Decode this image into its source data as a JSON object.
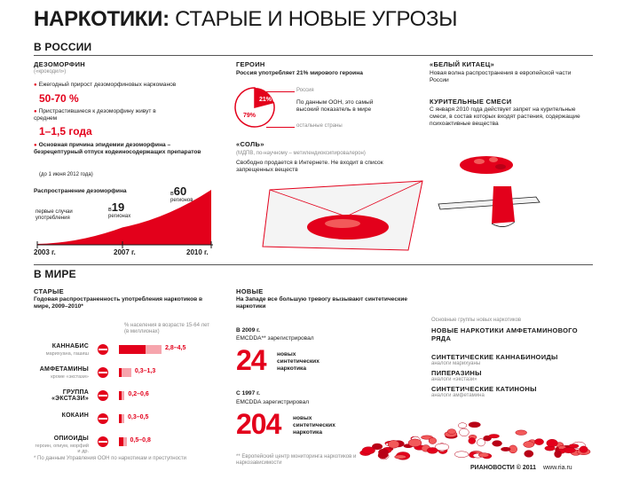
{
  "header": {
    "title_bold": "НАРКОТИКИ:",
    "title_rest": "СТАРЫЕ И НОВЫЕ УГРОЗЫ"
  },
  "russia": {
    "section": "В РОССИИ",
    "desomorphine": {
      "heading": "ДЕЗОМОРФИН",
      "alias": "(«крокодил»)",
      "bullet1": "Ежегодный прирост дезоморфиновых наркоманов",
      "bullet1_value": "50-70 %",
      "bullet2": "Пристрастившиеся к дезоморфину живут в среднем",
      "bullet2_value": "1–1,5 года",
      "bullet3": "Основная причина эпидемии дезоморфина – безрецептурный отпуск кодеиносодержащих препаратов",
      "bullet3_note": "(до 1 июня 2012 года)"
    },
    "spread": {
      "label": "Распространение дезоморфина",
      "first_cases": "первые случаи употребления",
      "reg19_prefix": "в",
      "reg19_num": "19",
      "reg19_unit": "регионах",
      "reg60_prefix": "в",
      "reg60_num": "60",
      "reg60_unit": "регионов"
    },
    "heroin": {
      "heading": "ГЕРОИН",
      "text": "Россия употребляет 21% мирового героина",
      "legend_russia": "Россия",
      "legend_others": "остальные страны",
      "note": "По данным ООН, это самый высокий показатель в мире"
    },
    "salt": {
      "heading": "«СОЛЬ»",
      "alias": "(МДПВ, по-научному – метилендиоксипировалерон)",
      "text": "Свободно продается в Интернете. Не входит в список запрещенных веществ"
    },
    "china_white": {
      "heading": "«БЕЛЫЙ КИТАЕЦ»",
      "text": "Новая волна распространения в европейской части России"
    },
    "smoking_mixes": {
      "heading": "КУРИТЕЛЬНЫЕ СМЕСИ",
      "text": "С января 2010 года действует запрет на курительные смеси, в состав которых входят растения, содержащие психоактивные вещества"
    }
  },
  "world": {
    "section": "В МИРЕ",
    "old": {
      "heading": "СТАРЫЕ",
      "text": "Годовая распространенность употребления наркотиков в мире, 2009–2010*",
      "scale_note": "% населения в возрасте 15-64 лет (в миллионах)",
      "drugs": [
        {
          "name": "КАННАБИС",
          "sub": "марихуана, гашиш",
          "range": "2,8–4,5",
          "icon": "cannabis-leaf-icon"
        },
        {
          "name": "АМФЕТАМИНЫ",
          "sub": "кроме «экстази»",
          "range": "0,3–1,3",
          "icon": "pills-icon"
        },
        {
          "name": "ГРУППА «ЭКСТАЗИ»",
          "sub": "",
          "range": "0,2–0,6",
          "icon": "ecstasy-tablet-icon"
        },
        {
          "name": "КОКАИН",
          "sub": "",
          "range": "0,3–0,5",
          "icon": "powder-icon"
        },
        {
          "name": "ОПИОИДЫ",
          "sub": "героин, опиум, морфий и др.",
          "range": "0,5–0,8",
          "icon": "syringe-icon"
        }
      ],
      "footnote": "* По данным Управления ООН по наркотикам и преступности"
    },
    "new": {
      "heading": "НОВЫЕ",
      "text": "На Западе все большую тревогу вызывают синтетические наркотики",
      "y2009": "В 2009 г.",
      "emcdda1": "EMCDDA** зарегистрировал",
      "num24": "24",
      "num24_label": "новых синтетических наркотика",
      "since1997": "С 1997 г.",
      "emcdda2": "EMCDDA зарегистрировал",
      "num204": "204",
      "num204_label": "новых синтетических наркотика",
      "footnote": "** Европейский центр мониторинга наркотиков и наркозависимости"
    },
    "groups": {
      "heading": "Основные группы новых наркотиков",
      "items": [
        {
          "name": "НОВЫЕ НАРКОТИКИ АМФЕТАМИНОВОГО РЯДА",
          "sub": ""
        },
        {
          "name": "СИНТЕТИЧЕСКИЕ КАННАБИНОИДЫ",
          "sub": "аналоги марихуаны"
        },
        {
          "name": "ПИПЕРАЗИНЫ",
          "sub": "аналоги «экстази»"
        },
        {
          "name": "СИНТЕТИЧЕСКИЕ КАТИНОНЫ",
          "sub": "аналоги амфетамина"
        }
      ]
    }
  },
  "footer": {
    "source": "РИАНОВОСТИ © 2011",
    "site": "www.ria.ru"
  },
  "chart_data": [
    {
      "type": "area",
      "title": "Распространение дезоморфина",
      "x": [
        "2003 г.",
        "2007 г.",
        "2010 г."
      ],
      "series": [
        {
          "values": [
            0,
            19,
            60
          ]
        }
      ],
      "annotations": [
        "первые случаи употребления",
        "в 19 регионах",
        "в 60 регионов"
      ]
    },
    {
      "type": "pie",
      "title": "ГЕРОИН",
      "categories": [
        "Россия",
        "остальные страны"
      ],
      "values": [
        21,
        79
      ],
      "labels": [
        "21%",
        "79%"
      ]
    },
    {
      "type": "bar",
      "title": "Годовая распространенность употребления наркотиков в мире, 2009–2010*",
      "ylabel": "% населения в возрасте 15-64 лет (в миллионах)",
      "categories": [
        "КАННАБИС",
        "АМФЕТАМИНЫ",
        "ГРУППА «ЭКСТАЗИ»",
        "КОКАИН",
        "ОПИОИДЫ"
      ],
      "series": [
        {
          "values": [
            2.8,
            0.3,
            0.2,
            0.3,
            0.5
          ]
        },
        {
          "values": [
            4.5,
            1.3,
            0.6,
            0.5,
            0.8
          ]
        }
      ],
      "value_labels": [
        "2,8–4,5",
        "0,3–1,3",
        "0,2–0,6",
        "0,3–0,5",
        "0,5–0,8"
      ]
    }
  ]
}
